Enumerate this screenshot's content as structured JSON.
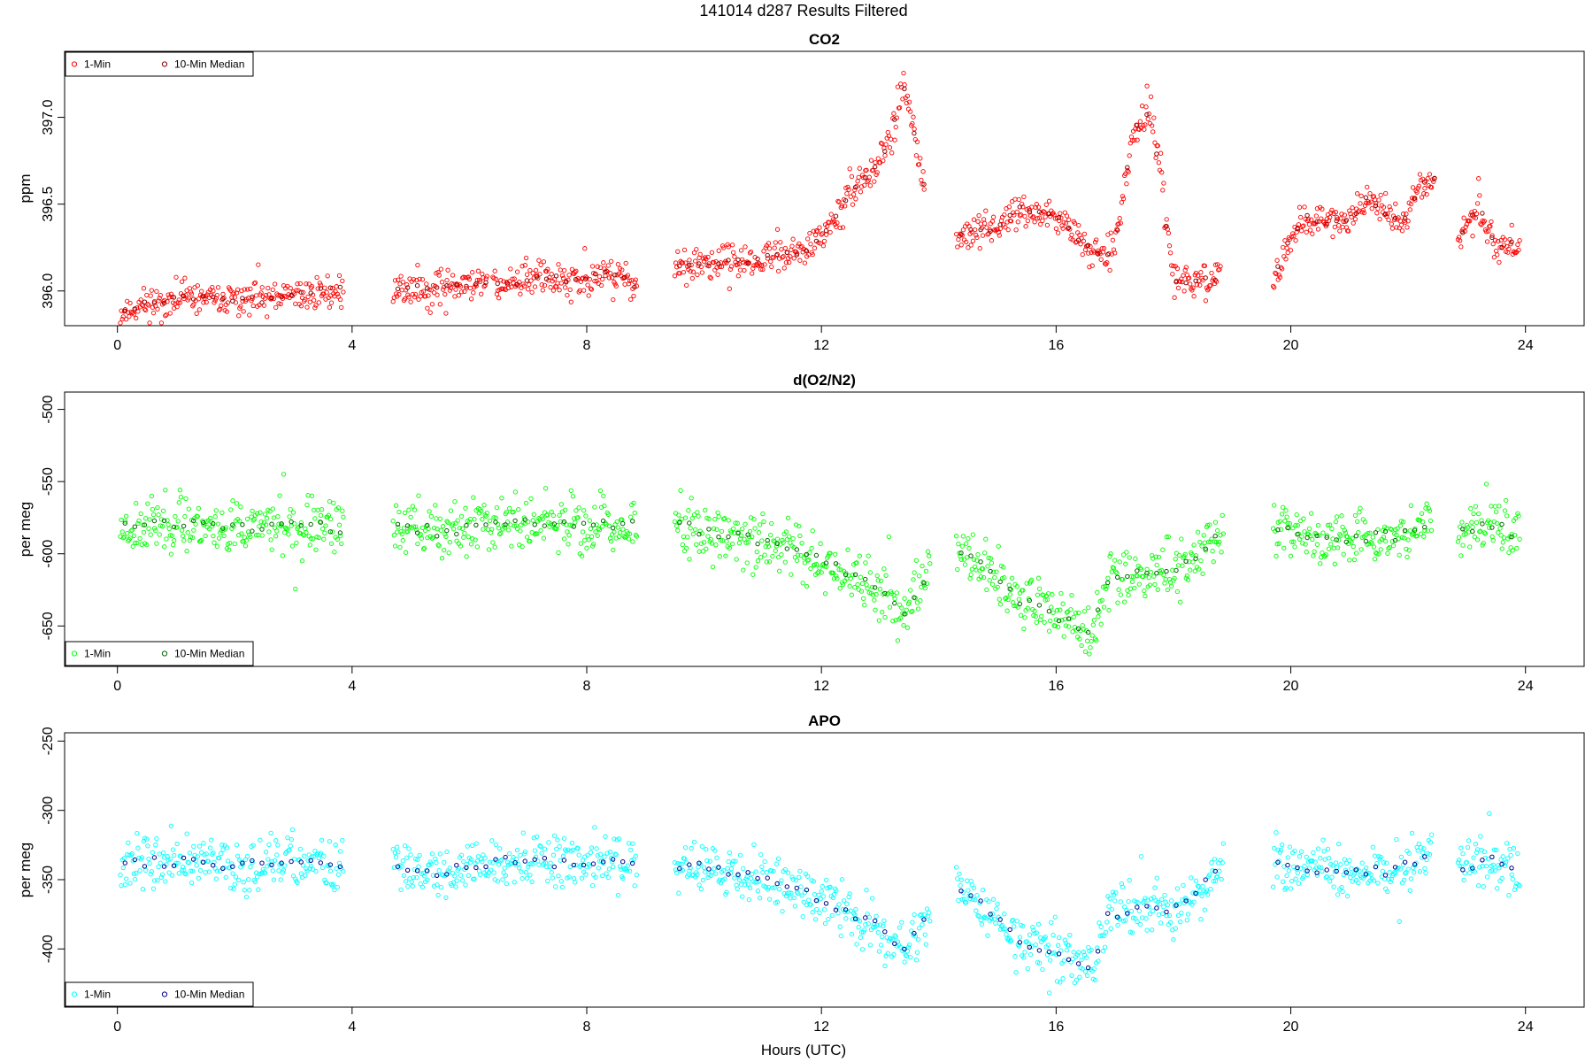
{
  "figure": {
    "title": "141014   d287   Results Filtered",
    "xlabel": "Hours (UTC)"
  },
  "chart_data": [
    {
      "type": "scatter",
      "title": "CO2",
      "xlabel": "",
      "ylabel": "ppm",
      "xlim": [
        -0.9,
        25
      ],
      "ylim": [
        395.8,
        397.38
      ],
      "xticks": [
        0,
        4,
        8,
        12,
        16,
        20,
        24
      ],
      "yticks": [
        396.0,
        396.5,
        397.0
      ],
      "ytick_labels": [
        "396.0",
        "396.5",
        "397.0"
      ],
      "legend": {
        "position": "top-left",
        "entries": [
          "1-Min",
          "10-Min Median"
        ]
      },
      "colors": {
        "one_min": "#ff0000",
        "median": "#8b0000"
      },
      "trace": [
        [
          0.05,
          395.87
        ],
        [
          0.5,
          395.93
        ],
        [
          1.0,
          395.95
        ],
        [
          1.5,
          395.96
        ],
        [
          2.0,
          395.95
        ],
        [
          2.5,
          395.95
        ],
        [
          3.0,
          395.97
        ],
        [
          3.5,
          396.0
        ],
        [
          3.85,
          396.01
        ],
        null,
        [
          4.7,
          396.01
        ],
        [
          5.3,
          396.02
        ],
        [
          5.8,
          396.04
        ],
        [
          6.3,
          396.05
        ],
        null,
        [
          6.4,
          396.03
        ],
        [
          6.9,
          396.06
        ],
        [
          7.4,
          396.08
        ],
        [
          7.9,
          396.05
        ],
        [
          8.3,
          396.12
        ],
        [
          8.6,
          396.1
        ],
        [
          8.85,
          396.0
        ],
        null,
        [
          9.5,
          396.14
        ],
        [
          10.0,
          396.15
        ],
        [
          10.4,
          396.17
        ],
        [
          10.9,
          396.18
        ],
        [
          11.3,
          396.2
        ],
        [
          11.7,
          396.22
        ],
        [
          12.0,
          396.3
        ],
        [
          12.3,
          396.45
        ],
        [
          12.6,
          396.6
        ],
        [
          12.9,
          396.7
        ],
        [
          13.2,
          396.9
        ],
        [
          13.4,
          397.2
        ],
        [
          13.55,
          396.95
        ],
        [
          13.75,
          396.6
        ],
        null,
        [
          14.3,
          396.32
        ],
        [
          14.7,
          396.36
        ],
        [
          15.0,
          396.35
        ],
        [
          15.3,
          396.48
        ],
        [
          15.7,
          396.45
        ],
        [
          16.0,
          396.44
        ],
        [
          16.4,
          396.3
        ],
        [
          16.8,
          396.2
        ],
        [
          17.0,
          396.25
        ],
        [
          17.3,
          396.9
        ],
        [
          17.6,
          397.05
        ],
        [
          17.8,
          396.6
        ],
        [
          18.0,
          396.05
        ],
        [
          18.4,
          396.06
        ],
        [
          18.8,
          396.08
        ],
        null,
        [
          19.7,
          396.08
        ],
        [
          20.0,
          396.3
        ],
        [
          20.3,
          396.45
        ],
        [
          20.6,
          396.38
        ],
        [
          21.0,
          396.4
        ],
        [
          21.3,
          396.55
        ],
        [
          21.6,
          396.45
        ],
        [
          21.9,
          396.38
        ],
        [
          22.2,
          396.6
        ],
        [
          22.45,
          396.65
        ],
        null,
        [
          22.85,
          396.3
        ],
        [
          23.2,
          396.5
        ],
        [
          23.5,
          396.25
        ],
        [
          23.9,
          396.28
        ]
      ],
      "noise": 0.07,
      "seed": 11
    },
    {
      "type": "scatter",
      "title": "d(O2/N2)",
      "xlabel": "",
      "ylabel": "per meg",
      "xlim": [
        -0.9,
        25
      ],
      "ylim": [
        -678,
        -488
      ],
      "xticks": [
        0,
        4,
        8,
        12,
        16,
        20,
        24
      ],
      "yticks": [
        -650,
        -600,
        -550,
        -500
      ],
      "ytick_labels": [
        "-650",
        "-600",
        "-550",
        "-500"
      ],
      "legend": {
        "position": "bottom-left",
        "entries": [
          "1-Min",
          "10-Min Median"
        ]
      },
      "colors": {
        "one_min": "#00ff00",
        "median": "#006400"
      },
      "trace": [
        [
          0.05,
          -582
        ],
        [
          1.0,
          -578
        ],
        [
          2.0,
          -582
        ],
        [
          3.0,
          -580
        ],
        [
          3.85,
          -583
        ],
        null,
        [
          4.7,
          -580
        ],
        [
          5.5,
          -585
        ],
        [
          6.2,
          -580
        ],
        [
          6.8,
          -578
        ],
        [
          7.5,
          -580
        ],
        [
          8.3,
          -580
        ],
        [
          8.85,
          -580
        ],
        null,
        [
          9.5,
          -580
        ],
        [
          10.5,
          -588
        ],
        [
          11.5,
          -595
        ],
        [
          12.3,
          -610
        ],
        [
          13.0,
          -625
        ],
        [
          13.4,
          -640
        ],
        [
          13.85,
          -610
        ],
        null,
        [
          14.3,
          -598
        ],
        [
          14.8,
          -610
        ],
        [
          15.3,
          -630
        ],
        [
          15.8,
          -640
        ],
        [
          16.3,
          -648
        ],
        [
          16.6,
          -655
        ],
        [
          16.9,
          -615
        ],
        [
          17.5,
          -612
        ],
        [
          18.0,
          -612
        ],
        [
          18.4,
          -600
        ],
        [
          18.85,
          -582
        ],
        null,
        [
          19.7,
          -583
        ],
        [
          20.5,
          -590
        ],
        [
          21.2,
          -588
        ],
        [
          21.8,
          -588
        ],
        [
          22.4,
          -577
        ],
        null,
        [
          22.85,
          -585
        ],
        [
          23.4,
          -578
        ],
        [
          23.9,
          -588
        ]
      ],
      "noise": 14,
      "seed": 23
    },
    {
      "type": "scatter",
      "title": "APO",
      "xlabel": "Hours (UTC)",
      "ylabel": "per meg",
      "xlim": [
        -0.9,
        25
      ],
      "ylim": [
        -442,
        -244
      ],
      "xticks": [
        0,
        4,
        8,
        12,
        16,
        20,
        24
      ],
      "yticks": [
        -400,
        -350,
        -300,
        -250
      ],
      "ytick_labels": [
        "-400",
        "-350",
        "-300",
        "-250"
      ],
      "legend": {
        "position": "bottom-left",
        "entries": [
          "1-Min",
          "10-Min Median"
        ]
      },
      "colors": {
        "one_min": "#00ffff",
        "median": "#00008b"
      },
      "trace": [
        [
          0.05,
          -338
        ],
        [
          1.0,
          -337
        ],
        [
          2.0,
          -340
        ],
        [
          3.0,
          -338
        ],
        [
          3.85,
          -342
        ],
        null,
        [
          4.7,
          -338
        ],
        [
          5.5,
          -345
        ],
        [
          6.2,
          -338
        ],
        [
          6.8,
          -335
        ],
        [
          7.5,
          -338
        ],
        [
          8.3,
          -338
        ],
        [
          8.85,
          -338
        ],
        null,
        [
          9.5,
          -338
        ],
        [
          10.5,
          -345
        ],
        [
          11.5,
          -355
        ],
        [
          12.3,
          -370
        ],
        [
          13.0,
          -385
        ],
        [
          13.4,
          -400
        ],
        [
          13.85,
          -372
        ],
        null,
        [
          14.3,
          -358
        ],
        [
          14.8,
          -370
        ],
        [
          15.3,
          -392
        ],
        [
          15.8,
          -400
        ],
        [
          16.3,
          -408
        ],
        [
          16.6,
          -415
        ],
        [
          16.9,
          -375
        ],
        [
          17.5,
          -370
        ],
        [
          18.0,
          -372
        ],
        [
          18.4,
          -360
        ],
        [
          18.85,
          -338
        ],
        null,
        [
          19.7,
          -340
        ],
        [
          20.5,
          -345
        ],
        [
          21.2,
          -345
        ],
        [
          21.8,
          -343
        ],
        [
          22.4,
          -333
        ],
        null,
        [
          22.85,
          -342
        ],
        [
          23.4,
          -335
        ],
        [
          23.9,
          -345
        ]
      ],
      "noise": 14,
      "seed": 37
    }
  ]
}
